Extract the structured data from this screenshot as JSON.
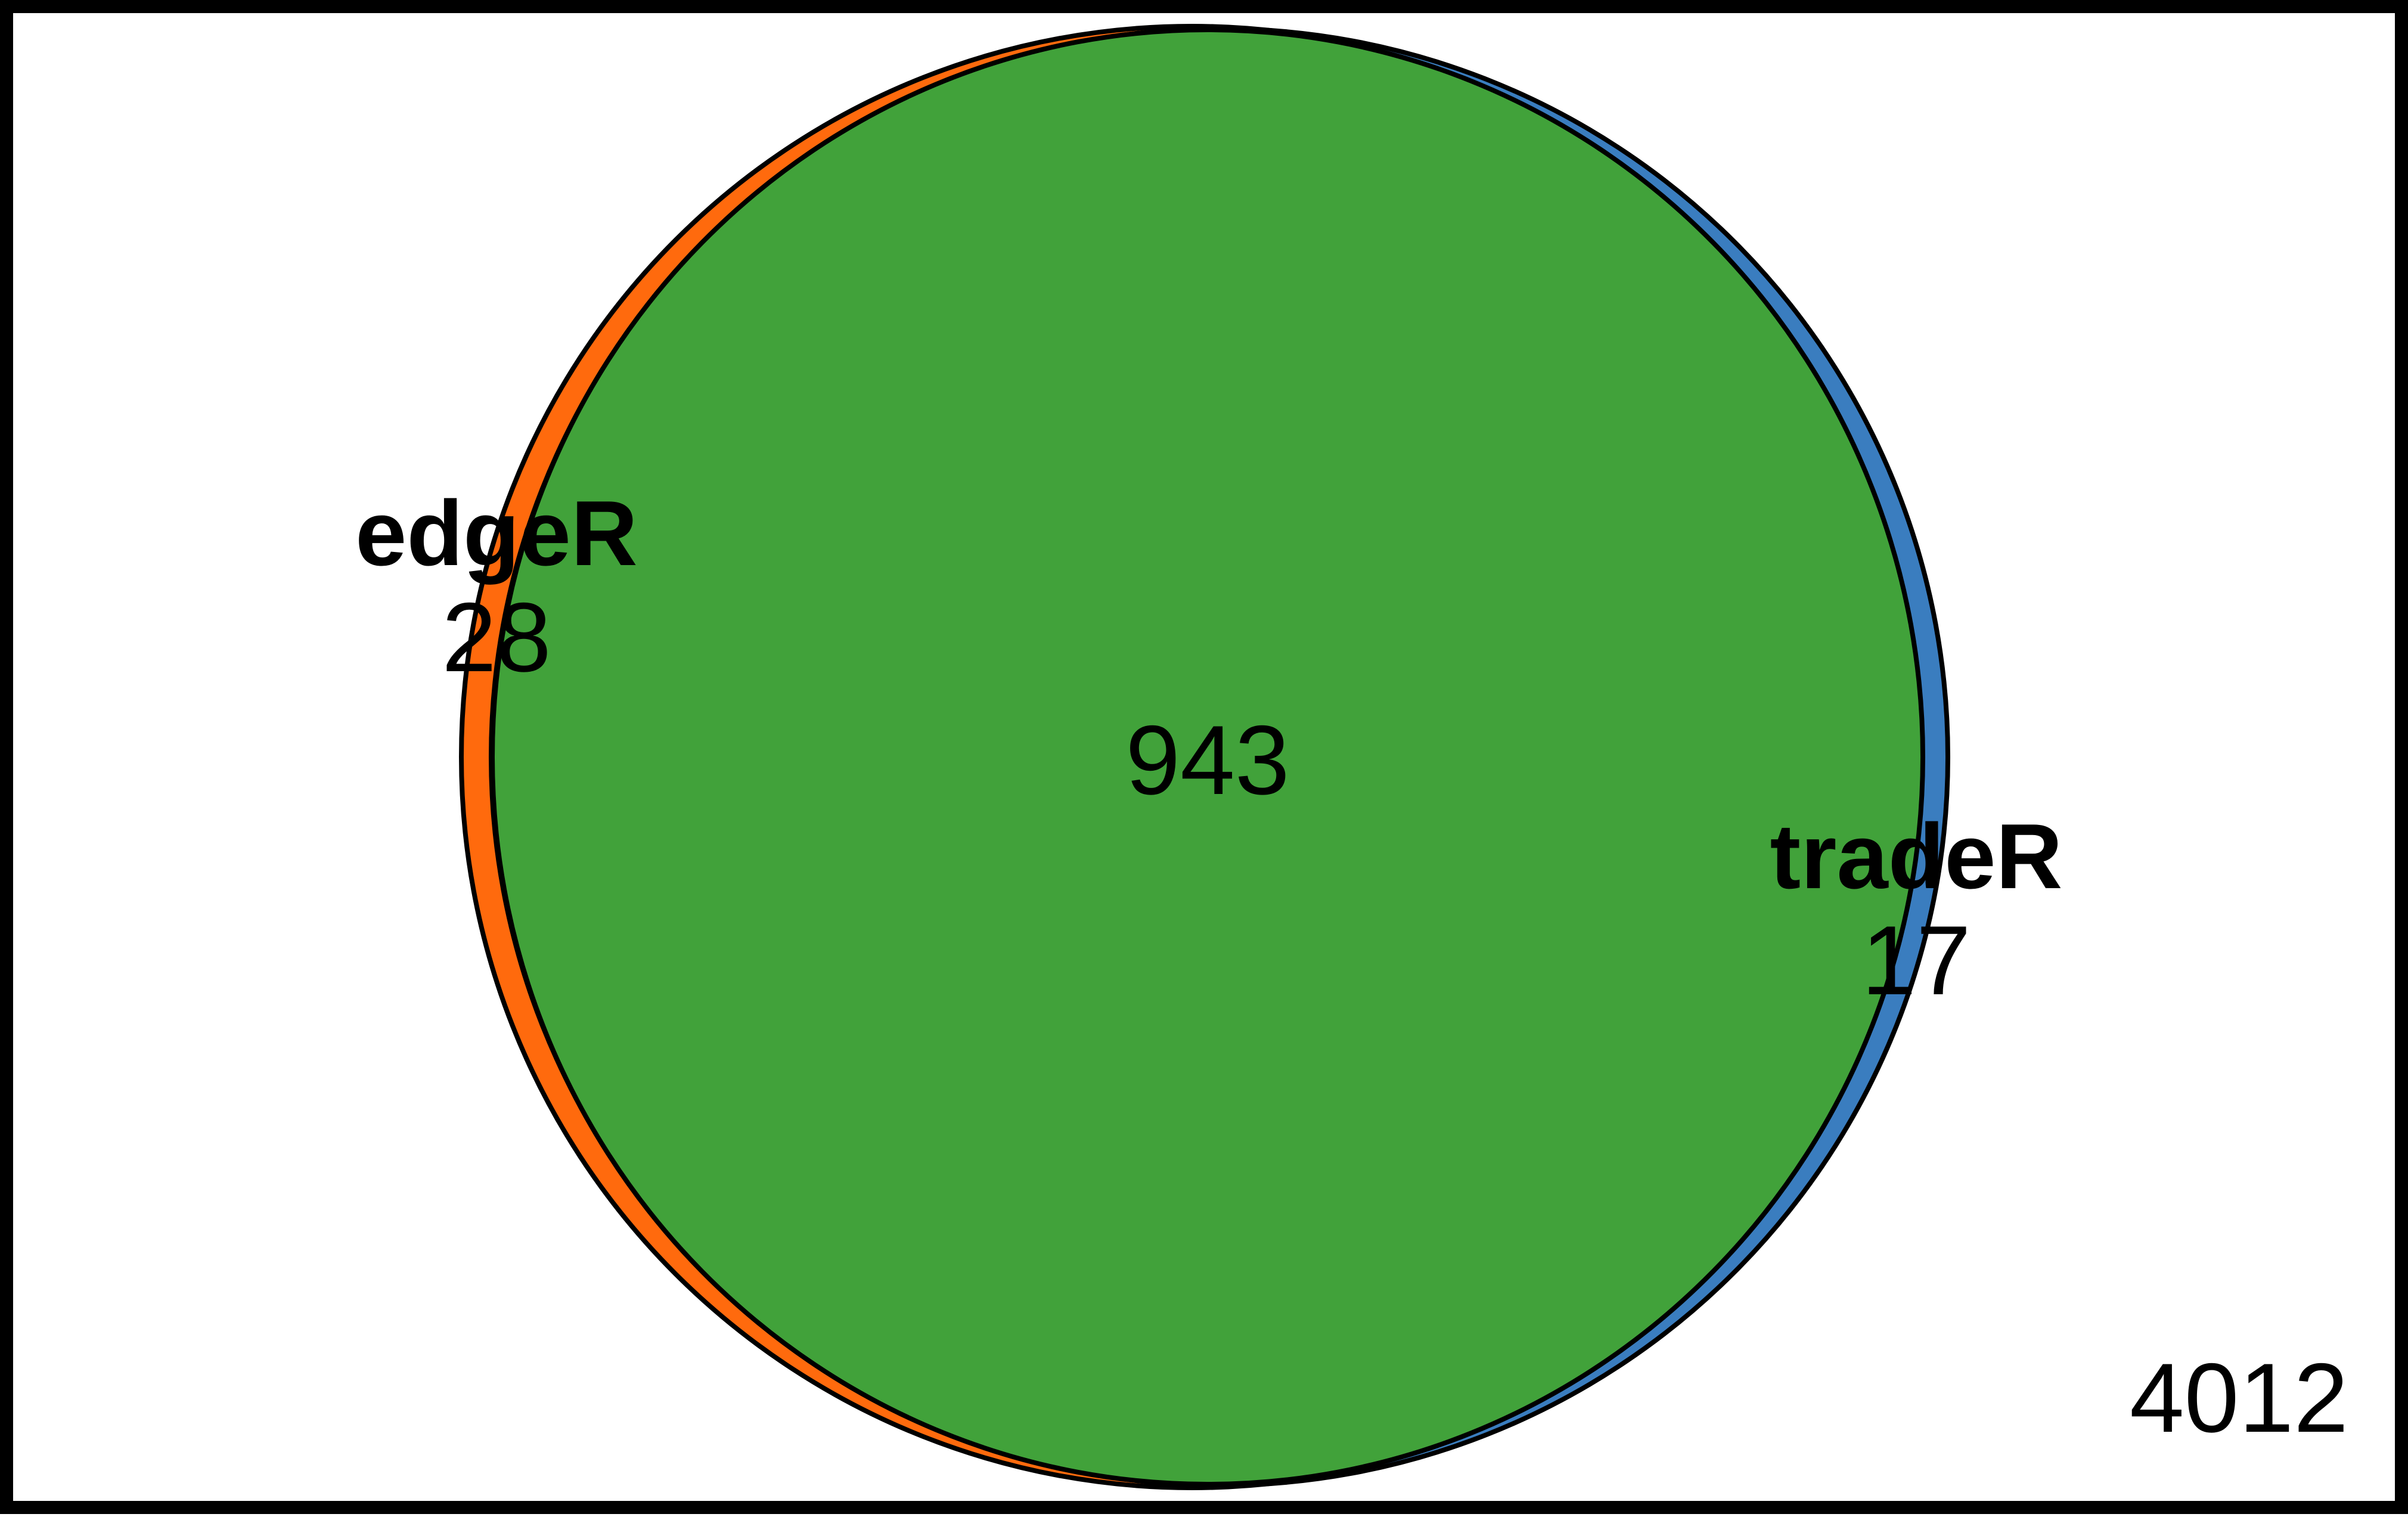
{
  "diagram": {
    "type": "venn",
    "sets": [
      {
        "name": "edgeR",
        "only_count": "28",
        "color": "#FF6A0D"
      },
      {
        "name": "tradeR",
        "only_count": "17",
        "color": "#3A7DBF"
      }
    ],
    "intersection": {
      "count": "943",
      "color": "#41A23A"
    },
    "outside": {
      "count": "4012"
    },
    "outline_color": "#000000",
    "background": "#FFFFFF"
  }
}
